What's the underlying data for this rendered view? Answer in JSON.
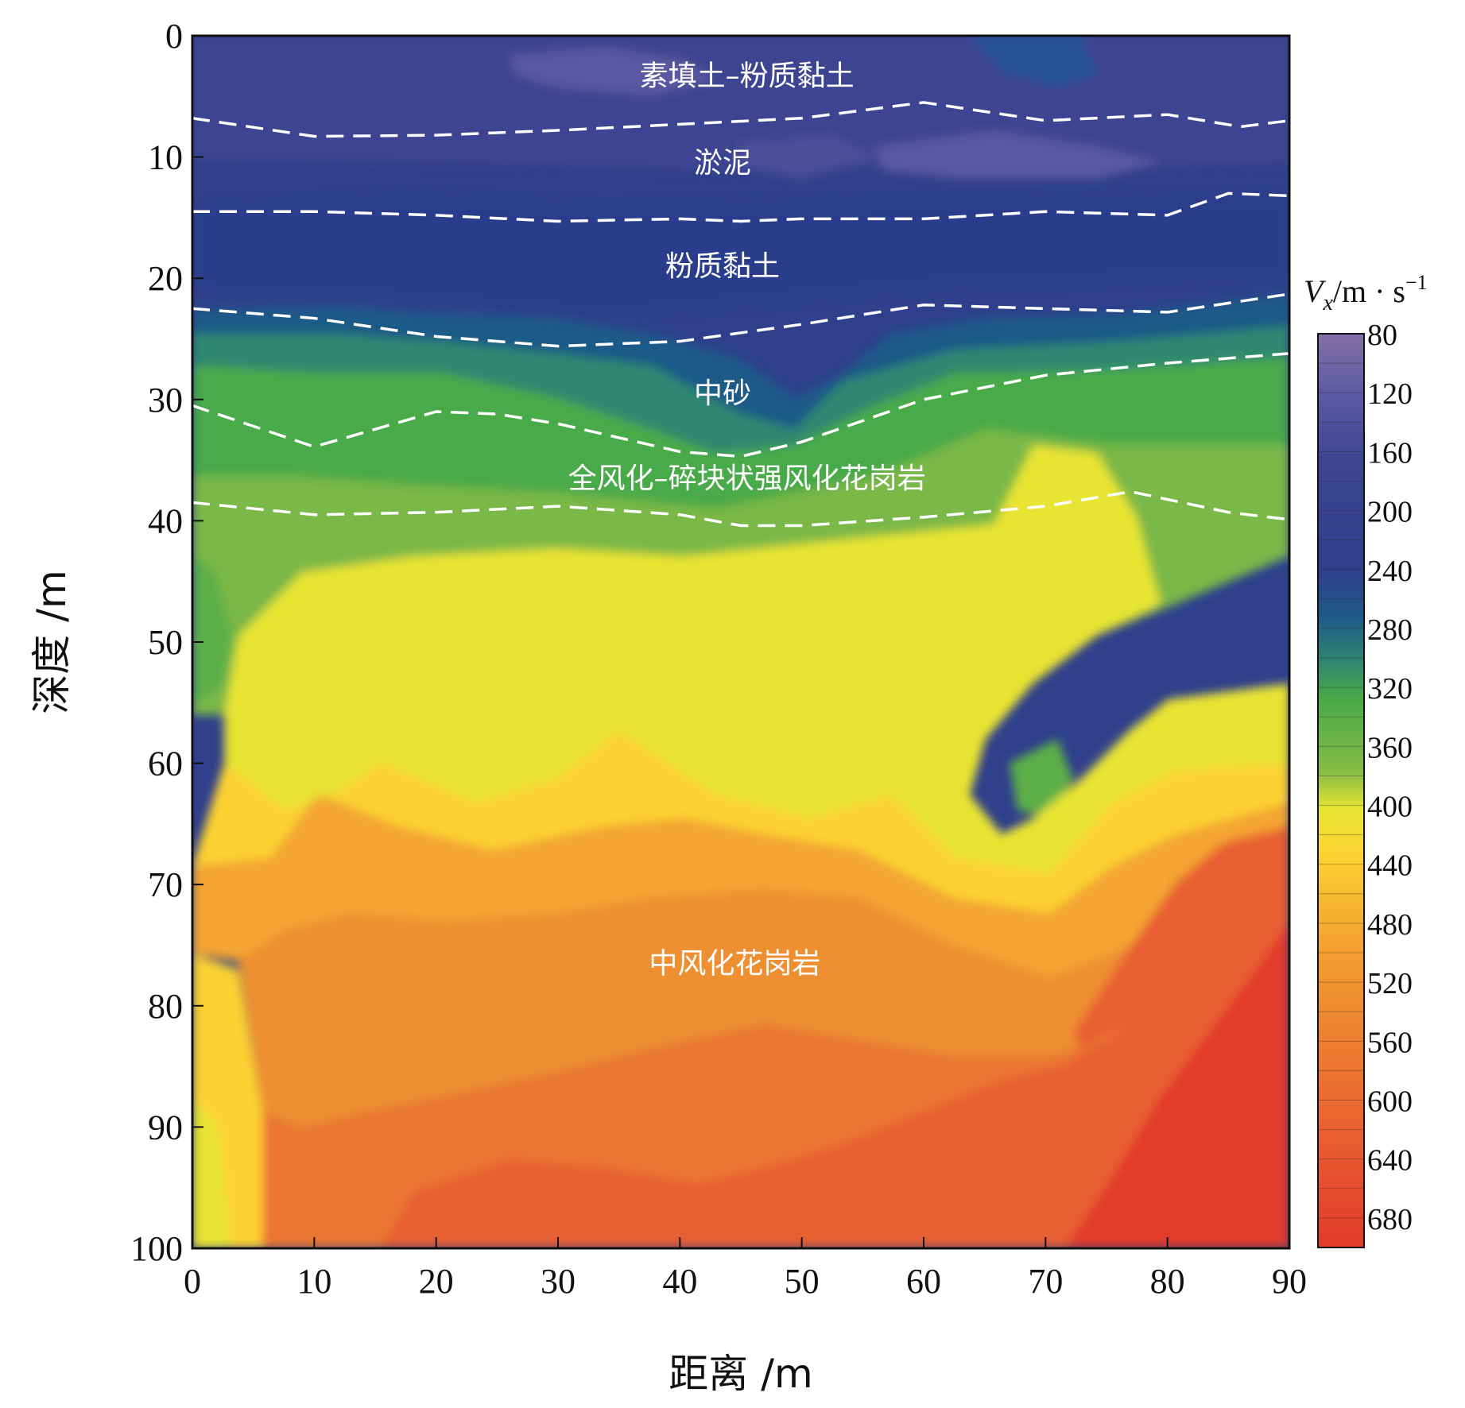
{
  "chart_data": {
    "type": "heatmap",
    "title": "",
    "xlabel": "距离 /m",
    "ylabel": "深度 /m",
    "xlim": [
      0,
      90
    ],
    "ylim": [
      0,
      100
    ],
    "y_inverted": true,
    "x_ticks": [
      "0",
      "10",
      "20",
      "30",
      "40",
      "50",
      "60",
      "70",
      "80",
      "90"
    ],
    "y_ticks": [
      "0",
      "10",
      "20",
      "30",
      "40",
      "50",
      "60",
      "70",
      "80",
      "90",
      "100"
    ],
    "colorbar": {
      "title_main": "V",
      "title_sub": "x",
      "title_unit": "/m · s",
      "title_sup": "−1",
      "range": [
        80,
        700
      ],
      "labels": [
        "80",
        "120",
        "160",
        "200",
        "240",
        "280",
        "320",
        "360",
        "400",
        "440",
        "480",
        "520",
        "560",
        "600",
        "640",
        "680"
      ]
    },
    "layers": [
      {
        "label": "素填土–粉质黏土",
        "label_x": 45.5,
        "label_y": 3.3,
        "vs_approx": 180
      },
      {
        "label": "淤泥",
        "label_x": 43.5,
        "label_y": 10.5,
        "vs_approx": 150
      },
      {
        "label": "粉质黏土",
        "label_x": 43.5,
        "label_y": 19.0,
        "vs_approx": 200
      },
      {
        "label": "中砂",
        "label_x": 43.5,
        "label_y": 29.5,
        "vs_approx": 280
      },
      {
        "label": "全风化–碎块状强风化花岗岩",
        "label_x": 45.5,
        "label_y": 36.5,
        "vs_approx": 350
      },
      {
        "label": "中风化花岗岩",
        "label_x": 44.5,
        "label_y": 76.5,
        "vs_approx": 500
      }
    ],
    "boundaries": [
      {
        "x": [
          0,
          10,
          20,
          30,
          40,
          50,
          60,
          70,
          80,
          86,
          90
        ],
        "depth": [
          6.8,
          8.3,
          8.2,
          7.8,
          7.3,
          6.8,
          5.5,
          7.0,
          6.5,
          7.5,
          7.0
        ]
      },
      {
        "x": [
          0,
          10,
          20,
          30,
          40,
          45,
          50,
          60,
          70,
          80,
          85,
          90
        ],
        "depth": [
          14.5,
          14.5,
          14.8,
          15.3,
          15.1,
          15.3,
          15.1,
          15.1,
          14.5,
          14.8,
          13.0,
          13.2
        ]
      },
      {
        "x": [
          0,
          10,
          20,
          30,
          40,
          50,
          60,
          70,
          80,
          90
        ],
        "depth": [
          22.5,
          23.3,
          24.8,
          25.6,
          25.2,
          23.8,
          22.2,
          22.5,
          22.8,
          21.3
        ]
      },
      {
        "x": [
          0,
          10,
          20,
          25,
          30,
          40,
          45,
          50,
          60,
          70,
          80,
          90
        ],
        "depth": [
          30.5,
          33.9,
          31.0,
          31.2,
          32.0,
          34.3,
          34.7,
          33.5,
          30.0,
          28.0,
          27.0,
          26.2
        ]
      },
      {
        "x": [
          0,
          10,
          20,
          30,
          40,
          45,
          50,
          60,
          70,
          77,
          85,
          90
        ],
        "depth": [
          38.5,
          39.5,
          39.3,
          38.8,
          39.5,
          40.4,
          40.4,
          39.7,
          38.8,
          37.6,
          39.3,
          39.9
        ]
      }
    ],
    "field_description": "Vs increases with depth: ~140-220 m/s in upper 22 m, 260-300 near 25-33 m, 320-380 around 30-45 m, 400-460 between 45-65 m, 480-560 from 65-95 m, up to ~680 at bottom-right."
  }
}
